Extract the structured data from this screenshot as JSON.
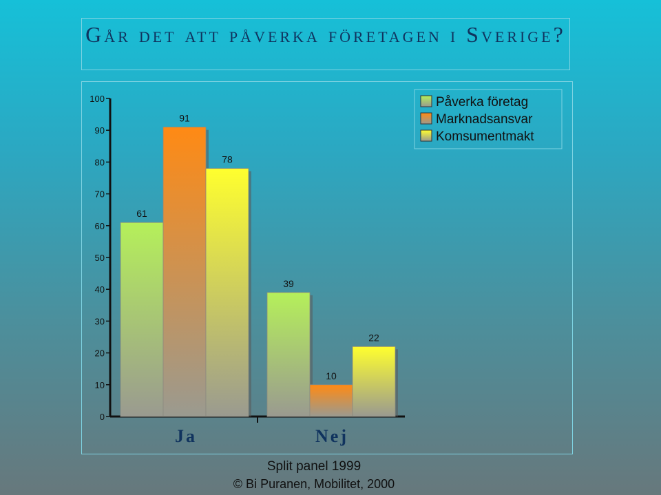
{
  "title": "Går det att påverka företagen i Sverige?",
  "chart_data": {
    "type": "bar",
    "categories": [
      "Ja",
      "Nej"
    ],
    "series": [
      {
        "name": "Påverka företag",
        "values": [
          61,
          39
        ],
        "color": "#b5f05a"
      },
      {
        "name": "Marknadsansvar",
        "values": [
          91,
          10
        ],
        "color": "#ff8a14"
      },
      {
        "name": "Komsumentmakt",
        "values": [
          78,
          22
        ],
        "color": "#ffff2e"
      }
    ],
    "ylim": [
      0,
      100
    ],
    "yticks": [
      0,
      10,
      20,
      30,
      40,
      50,
      60,
      70,
      80,
      90,
      100
    ],
    "data_labels": true,
    "legend_position": "top-right",
    "grid": false
  },
  "footer": {
    "line1": "Split panel 1999",
    "line2": "© Bi Puranen, Mobilitet, 2000"
  }
}
